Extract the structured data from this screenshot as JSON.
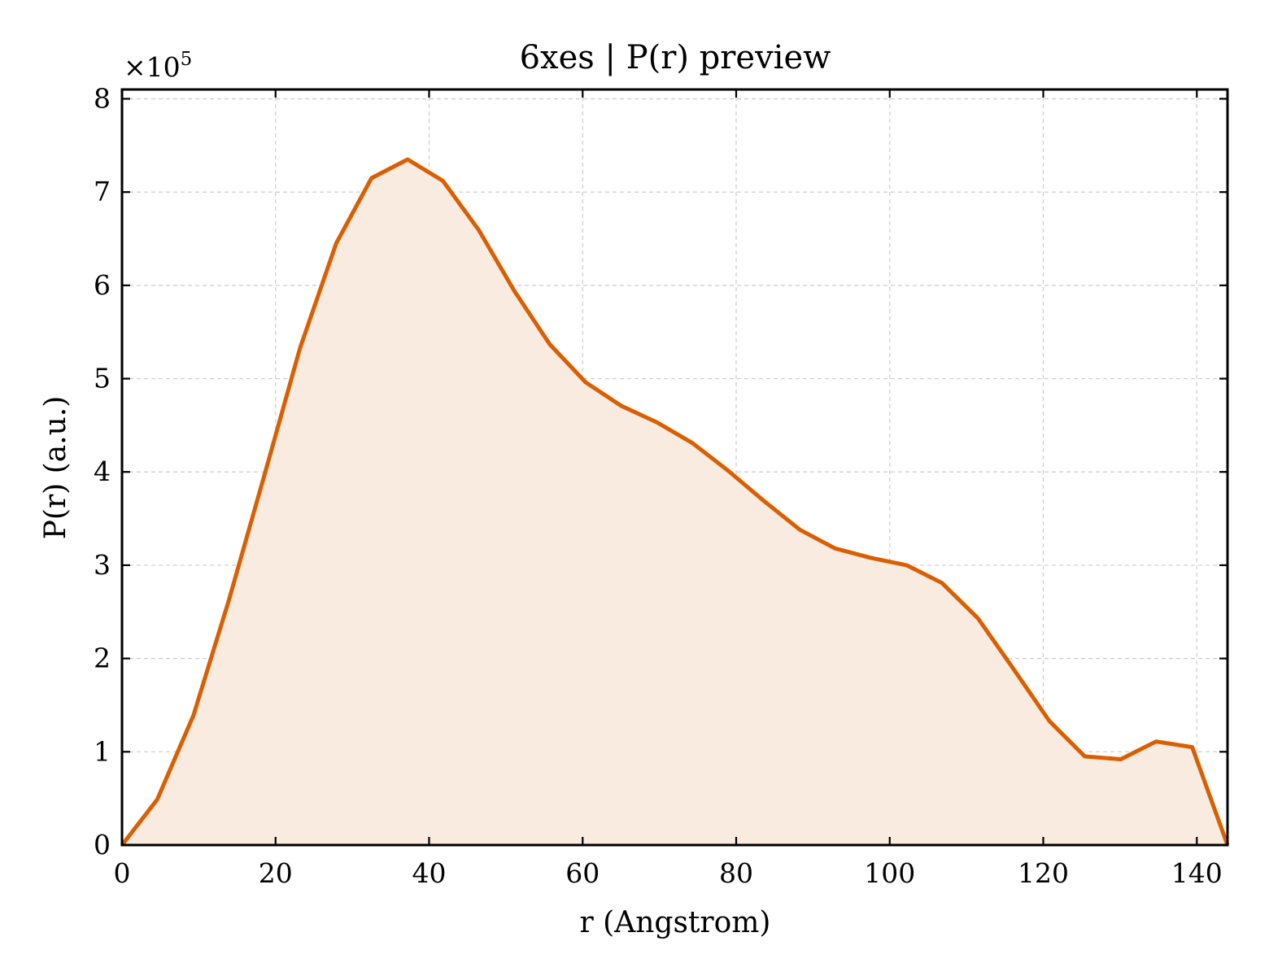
{
  "chart_data": {
    "type": "area",
    "title": "6xes | P(r) preview",
    "xlabel": "r (Angstrom)",
    "ylabel": "P(r) (a.u.)",
    "y_multiplier": {
      "base": "×10",
      "exponent": "5"
    },
    "xlim": [
      0,
      144
    ],
    "ylim": [
      0,
      8.1
    ],
    "x_ticks": [
      0,
      20,
      40,
      60,
      80,
      100,
      120,
      140
    ],
    "x_tick_labels": [
      "0",
      "20",
      "40",
      "60",
      "80",
      "100",
      "120",
      "140"
    ],
    "y_ticks": [
      0,
      1,
      2,
      3,
      4,
      5,
      6,
      7,
      8
    ],
    "y_tick_labels": [
      "0",
      "1",
      "2",
      "3",
      "4",
      "5",
      "6",
      "7",
      "8"
    ],
    "grid": true,
    "line_color": "#d95f02",
    "fill_color": "#f9ebe0",
    "series": [
      {
        "x": [
          0,
          4.6,
          9.3,
          13.9,
          18.6,
          23.2,
          27.9,
          32.5,
          37.2,
          41.8,
          46.5,
          51.1,
          55.7,
          60.4,
          65.0,
          69.7,
          74.3,
          79.0,
          83.6,
          88.3,
          92.9,
          97.5,
          102.2,
          106.8,
          111.5,
          116.1,
          120.8,
          125.4,
          130.1,
          134.7,
          139.4,
          144.0
        ],
        "y": [
          0,
          0.49,
          1.39,
          2.62,
          3.98,
          5.33,
          6.45,
          7.15,
          7.35,
          7.12,
          6.59,
          5.94,
          5.37,
          4.96,
          4.71,
          4.53,
          4.31,
          4.01,
          3.69,
          3.38,
          3.18,
          3.08,
          3.0,
          2.81,
          2.43,
          1.89,
          1.33,
          0.95,
          0.92,
          1.11,
          1.05,
          0
        ]
      }
    ]
  }
}
